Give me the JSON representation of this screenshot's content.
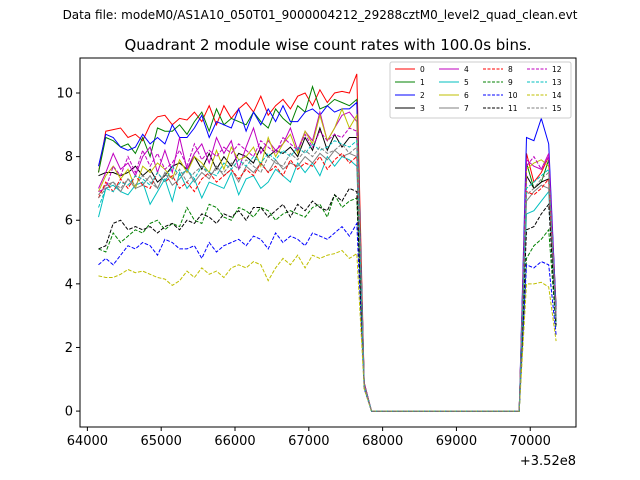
{
  "header": {
    "data_file": "Data file: modeM0/AS1A10_050T01_9000004212_29288cztM0_level2_quad_clean.evt"
  },
  "chart_data": {
    "type": "line",
    "title": "Quadrant 2 module wise count rates with 100.0s bins.",
    "xlabel": "",
    "ylabel": "",
    "x_offset_label": "+3.52e8",
    "xlim": [
      63900,
      70620
    ],
    "ylim": [
      -0.5,
      11.1
    ],
    "x_ticks": [
      64000,
      65000,
      66000,
      67000,
      68000,
      69000,
      70000
    ],
    "y_ticks": [
      0,
      2,
      4,
      6,
      8,
      10
    ],
    "grid": false,
    "legend_placement": "top-right",
    "x": [
      64150,
      64250,
      64350,
      64450,
      64550,
      64650,
      64750,
      64850,
      64950,
      65050,
      65150,
      65250,
      65350,
      65450,
      65550,
      65650,
      65750,
      65850,
      65950,
      66050,
      66150,
      66250,
      66350,
      66450,
      66550,
      66650,
      66750,
      66850,
      66950,
      67050,
      67150,
      67250,
      67350,
      67450,
      67550,
      67650,
      67750,
      67850,
      69850,
      69950,
      70050,
      70150,
      70250,
      70350
    ],
    "series": [
      {
        "name": "0",
        "color": "#ff0000",
        "dash": "solid",
        "values": [
          7.5,
          8.8,
          8.85,
          8.9,
          8.6,
          8.7,
          8.5,
          9.0,
          9.25,
          9.3,
          9.0,
          9.2,
          9.15,
          9.4,
          9.1,
          9.6,
          9.0,
          9.6,
          9.2,
          9.5,
          9.7,
          9.4,
          9.9,
          9.3,
          9.6,
          9.8,
          9.5,
          9.9,
          10.0,
          9.6,
          10.1,
          9.7,
          10.0,
          10.05,
          10.0,
          10.6,
          0.9,
          0.0,
          0.0,
          8.1,
          7.2,
          7.5,
          8.0,
          3.3
        ]
      },
      {
        "name": "1",
        "color": "#008000",
        "dash": "solid",
        "values": [
          7.5,
          8.6,
          8.5,
          8.3,
          8.4,
          8.1,
          8.6,
          8.0,
          8.9,
          8.8,
          8.8,
          9.0,
          8.7,
          9.1,
          9.4,
          8.8,
          9.5,
          9.0,
          9.2,
          9.1,
          9.0,
          9.4,
          9.1,
          8.9,
          9.5,
          9.2,
          9.0,
          9.6,
          9.4,
          10.2,
          9.5,
          9.6,
          9.8,
          9.7,
          9.6,
          9.8,
          0.85,
          0.0,
          0.0,
          7.8,
          7.0,
          7.2,
          7.9,
          3.2
        ]
      },
      {
        "name": "2",
        "color": "#0000ff",
        "dash": "solid",
        "values": [
          7.7,
          8.7,
          8.6,
          8.3,
          8.2,
          8.3,
          8.7,
          8.4,
          8.6,
          8.4,
          9.0,
          8.6,
          8.6,
          8.9,
          9.3,
          8.6,
          9.1,
          9.0,
          8.9,
          9.5,
          8.8,
          9.4,
          9.0,
          9.5,
          9.1,
          9.6,
          9.1,
          9.1,
          9.4,
          9.5,
          9.3,
          9.6,
          9.4,
          9.5,
          9.5,
          9.7,
          0.88,
          0.0,
          0.0,
          8.6,
          8.5,
          9.2,
          8.4,
          3.2
        ]
      },
      {
        "name": "3",
        "color": "#000000",
        "dash": "solid",
        "values": [
          7.4,
          7.5,
          7.5,
          7.4,
          7.5,
          7.7,
          7.4,
          7.6,
          7.2,
          7.4,
          7.7,
          7.8,
          7.6,
          8.0,
          7.6,
          8.1,
          7.6,
          8.0,
          7.7,
          8.1,
          8.0,
          7.8,
          8.3,
          8.0,
          8.2,
          8.1,
          8.3,
          8.0,
          8.6,
          8.2,
          8.9,
          8.2,
          8.7,
          8.3,
          8.6,
          8.6,
          0.85,
          0.0,
          0.0,
          7.4,
          7.0,
          7.2,
          7.3,
          3.0
        ]
      },
      {
        "name": "4",
        "color": "#bf00bf",
        "dash": "solid",
        "values": [
          7.0,
          7.5,
          8.1,
          7.6,
          7.8,
          7.4,
          8.0,
          8.3,
          7.5,
          8.2,
          7.5,
          8.6,
          7.6,
          8.1,
          8.4,
          7.8,
          8.6,
          8.1,
          8.5,
          7.6,
          8.3,
          8.9,
          8.1,
          8.5,
          8.2,
          8.4,
          8.9,
          8.2,
          8.8,
          8.5,
          9.4,
          8.5,
          8.9,
          9.3,
          9.4,
          9.1,
          0.85,
          0.0,
          0.0,
          7.9,
          7.7,
          7.6,
          8.1,
          3.0
        ]
      },
      {
        "name": "5",
        "color": "#00bfbf",
        "dash": "solid",
        "values": [
          6.1,
          7.0,
          7.1,
          6.9,
          6.8,
          7.1,
          7.2,
          6.5,
          6.9,
          7.3,
          6.6,
          7.5,
          7.0,
          7.3,
          6.7,
          7.2,
          7.1,
          7.0,
          7.5,
          6.8,
          7.3,
          7.4,
          7.0,
          7.2,
          7.6,
          7.4,
          7.2,
          7.8,
          7.5,
          7.8,
          7.4,
          8.0,
          7.7,
          8.0,
          7.9,
          7.7,
          0.8,
          0.0,
          0.0,
          6.2,
          6.3,
          6.6,
          6.9,
          2.8
        ]
      },
      {
        "name": "6",
        "color": "#bfbf00",
        "dash": "solid",
        "values": [
          6.9,
          7.4,
          7.7,
          7.3,
          7.6,
          7.0,
          7.7,
          7.5,
          7.8,
          7.6,
          7.3,
          7.9,
          7.5,
          8.0,
          7.8,
          7.5,
          8.2,
          7.6,
          8.3,
          7.9,
          8.0,
          8.3,
          7.7,
          8.6,
          8.0,
          8.4,
          8.7,
          8.1,
          8.8,
          8.4,
          9.3,
          8.5,
          8.9,
          9.5,
          8.9,
          9.3,
          0.85,
          0.0,
          0.0,
          7.6,
          7.8,
          7.9,
          7.7,
          3.0
        ]
      },
      {
        "name": "7",
        "color": "#808080",
        "dash": "solid",
        "values": [
          6.8,
          7.1,
          7.2,
          6.9,
          7.3,
          7.0,
          7.1,
          7.4,
          7.0,
          7.5,
          7.1,
          7.3,
          7.6,
          7.2,
          7.5,
          7.3,
          7.7,
          7.4,
          7.6,
          7.2,
          7.7,
          7.5,
          7.8,
          7.5,
          7.9,
          7.6,
          7.8,
          7.7,
          8.0,
          7.8,
          8.1,
          7.9,
          8.2,
          8.0,
          8.1,
          8.0,
          0.8,
          0.0,
          0.0,
          6.6,
          6.9,
          7.1,
          7.0,
          2.9
        ]
      },
      {
        "name": "8",
        "color": "#ff0000",
        "dash": "dashed",
        "values": [
          6.7,
          7.2,
          6.9,
          7.3,
          7.0,
          7.4,
          7.1,
          7.0,
          7.5,
          7.2,
          7.4,
          7.0,
          7.2,
          6.9,
          7.3,
          7.5,
          7.2,
          7.4,
          7.6,
          7.3,
          7.6,
          7.4,
          7.8,
          7.5,
          7.7,
          7.4,
          7.9,
          7.6,
          7.8,
          7.7,
          8.0,
          7.6,
          7.9,
          8.1,
          7.8,
          8.0,
          0.8,
          0.0,
          0.0,
          6.9,
          6.8,
          7.0,
          7.3,
          2.9
        ]
      },
      {
        "name": "9",
        "color": "#008000",
        "dash": "dashed",
        "values": [
          5.1,
          5.0,
          5.6,
          5.3,
          5.5,
          5.7,
          5.6,
          5.9,
          6.0,
          5.7,
          5.9,
          5.8,
          6.4,
          6.0,
          5.9,
          6.5,
          6.4,
          6.1,
          6.0,
          6.4,
          6.3,
          6.1,
          6.4,
          6.3,
          6.0,
          6.2,
          6.3,
          6.2,
          6.1,
          6.4,
          6.5,
          6.1,
          6.8,
          6.4,
          6.6,
          6.7,
          0.75,
          0.0,
          0.0,
          4.8,
          5.2,
          5.4,
          5.7,
          2.6
        ]
      },
      {
        "name": "10",
        "color": "#0000ff",
        "dash": "dashed",
        "values": [
          4.6,
          4.8,
          4.6,
          4.9,
          5.2,
          5.1,
          5.3,
          5.2,
          4.9,
          5.4,
          5.3,
          5.1,
          5.1,
          5.2,
          4.8,
          5.3,
          5.0,
          5.2,
          5.3,
          5.4,
          5.2,
          5.5,
          5.4,
          5.1,
          5.6,
          5.3,
          5.5,
          5.4,
          5.2,
          5.6,
          5.5,
          5.4,
          5.6,
          5.8,
          5.5,
          5.9,
          0.7,
          0.0,
          0.0,
          4.6,
          4.5,
          4.7,
          4.6,
          2.4
        ]
      },
      {
        "name": "11",
        "color": "#000000",
        "dash": "dashed",
        "values": [
          5.1,
          5.2,
          5.9,
          6.0,
          5.7,
          5.8,
          5.7,
          5.8,
          5.6,
          5.8,
          5.9,
          5.7,
          6.0,
          5.9,
          6.2,
          6.1,
          5.9,
          6.2,
          6.1,
          6.3,
          6.0,
          6.4,
          6.4,
          6.1,
          6.3,
          6.5,
          6.1,
          6.5,
          6.3,
          6.6,
          6.4,
          6.3,
          6.8,
          6.6,
          7.0,
          6.9,
          0.78,
          0.0,
          0.0,
          5.7,
          5.8,
          6.2,
          6.5,
          2.7
        ]
      },
      {
        "name": "12",
        "color": "#bf00bf",
        "dash": "dashed",
        "values": [
          6.9,
          7.0,
          7.7,
          7.4,
          8.0,
          7.5,
          8.2,
          7.7,
          8.1,
          7.6,
          7.8,
          8.2,
          7.7,
          8.4,
          7.9,
          8.2,
          8.0,
          8.3,
          8.1,
          8.4,
          8.2,
          8.0,
          8.5,
          8.3,
          8.1,
          8.6,
          8.4,
          8.2,
          8.7,
          8.3,
          8.8,
          8.5,
          8.7,
          8.6,
          8.9,
          8.8,
          0.85,
          0.0,
          0.0,
          7.7,
          8.0,
          7.6,
          8.0,
          2.9
        ]
      },
      {
        "name": "13",
        "color": "#00bfbf",
        "dash": "dashed",
        "values": [
          6.4,
          7.0,
          6.9,
          7.2,
          7.1,
          7.4,
          7.3,
          7.1,
          7.5,
          7.2,
          7.7,
          7.4,
          7.6,
          7.3,
          7.7,
          7.5,
          7.4,
          7.8,
          7.6,
          7.9,
          7.7,
          8.0,
          7.8,
          8.1,
          7.9,
          8.2,
          8.0,
          8.3,
          8.1,
          8.4,
          8.2,
          8.3,
          8.5,
          8.4,
          8.3,
          8.5,
          0.8,
          0.0,
          0.0,
          7.0,
          7.2,
          7.4,
          7.6,
          2.9
        ]
      },
      {
        "name": "14",
        "color": "#bfbf00",
        "dash": "dashed",
        "values": [
          4.25,
          4.2,
          4.2,
          4.3,
          4.45,
          4.35,
          4.4,
          4.3,
          4.2,
          4.15,
          3.95,
          4.1,
          4.4,
          4.2,
          4.5,
          4.3,
          4.4,
          4.2,
          4.5,
          4.6,
          4.5,
          4.7,
          4.6,
          4.1,
          4.5,
          4.8,
          4.6,
          4.9,
          4.5,
          4.9,
          4.8,
          4.9,
          4.95,
          5.05,
          4.8,
          4.95,
          0.7,
          0.0,
          0.0,
          4.0,
          4.0,
          4.05,
          3.9,
          2.2
        ]
      },
      {
        "name": "15",
        "color": "#808080",
        "dash": "dashed",
        "values": [
          6.7,
          7.0,
          7.2,
          7.0,
          7.3,
          7.1,
          7.4,
          7.2,
          7.0,
          7.5,
          7.3,
          7.6,
          7.2,
          7.5,
          7.7,
          7.4,
          7.6,
          7.5,
          7.8,
          7.6,
          7.9,
          7.7,
          7.5,
          8.0,
          7.8,
          7.7,
          8.1,
          7.9,
          8.2,
          8.0,
          8.3,
          8.1,
          8.2,
          8.4,
          8.1,
          8.3,
          0.8,
          0.0,
          0.0,
          6.8,
          7.0,
          7.3,
          7.5,
          2.9
        ]
      }
    ]
  }
}
